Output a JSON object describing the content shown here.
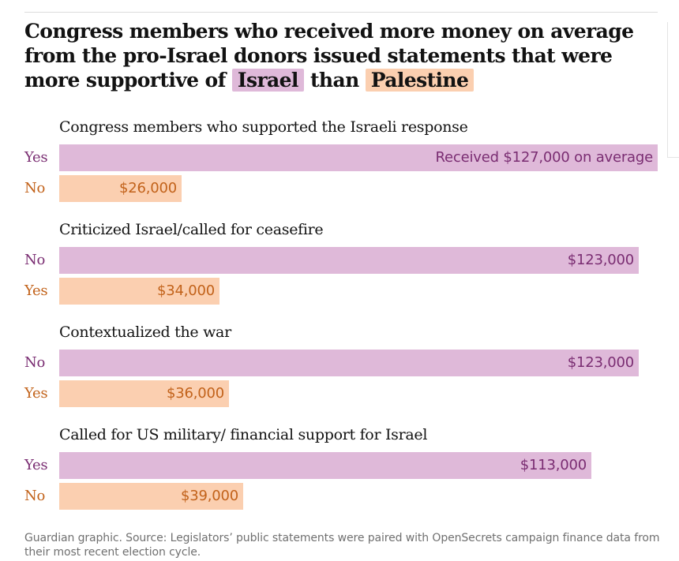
{
  "headline": {
    "prefix": "Congress members who received more money on average from the pro-Israel donors issued statements that were more supportive of",
    "israel_tag": "Israel",
    "middle": "than",
    "palestine_tag": "Palestine"
  },
  "colors": {
    "israel_bar": "#dfb9d9",
    "palestine_bar": "#fbcfb0",
    "israel_text": "#7a2d72",
    "palestine_text": "#c2621a"
  },
  "chart_data": {
    "type": "bar",
    "orientation": "horizontal",
    "unit": "USD",
    "xlim": [
      0,
      127000
    ],
    "grid": false,
    "groups": [
      {
        "title": "Congress members who supported the Israeli response",
        "bars": [
          {
            "category": "Yes",
            "value": 127000,
            "label": "Received $127,000 on average",
            "color_key": "israel"
          },
          {
            "category": "No",
            "value": 26000,
            "label": "$26,000",
            "color_key": "palestine"
          }
        ]
      },
      {
        "title": "Criticized Israel/called for ceasefire",
        "bars": [
          {
            "category": "No",
            "value": 123000,
            "label": "$123,000",
            "color_key": "israel"
          },
          {
            "category": "Yes",
            "value": 34000,
            "label": "$34,000",
            "color_key": "palestine"
          }
        ]
      },
      {
        "title": "Contextualized the war",
        "bars": [
          {
            "category": "No",
            "value": 123000,
            "label": "$123,000",
            "color_key": "israel"
          },
          {
            "category": "Yes",
            "value": 36000,
            "label": "$36,000",
            "color_key": "palestine"
          }
        ]
      },
      {
        "title": "Called for US military/ financial support for Israel",
        "bars": [
          {
            "category": "Yes",
            "value": 113000,
            "label": "$113,000",
            "color_key": "israel"
          },
          {
            "category": "No",
            "value": 39000,
            "label": "$39,000",
            "color_key": "palestine"
          }
        ]
      }
    ]
  },
  "source": "Guardian graphic. Source: Legislators’ public statements were paired with OpenSecrets campaign finance data from their most recent election cycle."
}
